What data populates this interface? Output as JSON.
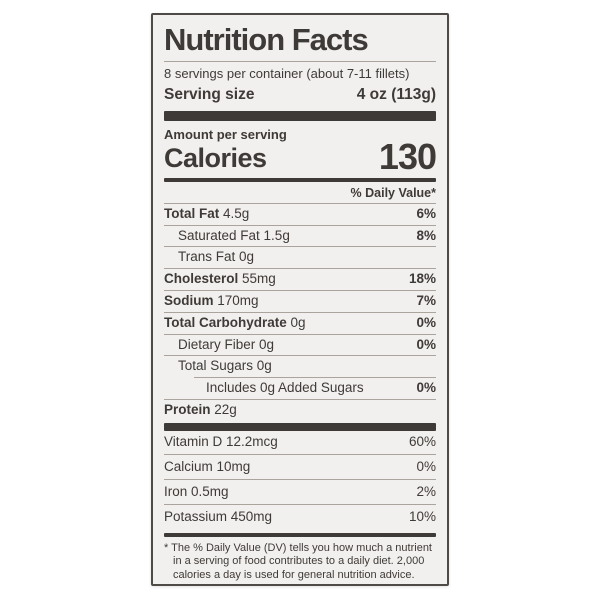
{
  "label": {
    "title": "Nutrition Facts",
    "servings_per_container": "8 servings per container (about 7-11 fillets)",
    "serving_size_label": "Serving size",
    "serving_size_value": "4 oz (113g)",
    "amount_per_serving": "Amount per serving",
    "calories_label": "Calories",
    "calories_value": "130",
    "daily_value_header": "% Daily Value*",
    "nutrient_rows": [
      {
        "name": "Total Fat",
        "rest": "4.5g",
        "dv": "6%",
        "indent": 0
      },
      {
        "name": "",
        "rest": "Saturated Fat 1.5g",
        "dv": "8%",
        "indent": 1
      },
      {
        "name": "",
        "rest": "Trans Fat 0g",
        "dv": "",
        "indent": 1
      },
      {
        "name": "Cholesterol",
        "rest": "55mg",
        "dv": "18%",
        "indent": 0
      },
      {
        "name": "Sodium",
        "rest": "170mg",
        "dv": "7%",
        "indent": 0
      },
      {
        "name": "Total Carbohydrate",
        "rest": "0g",
        "dv": "0%",
        "indent": 0
      },
      {
        "name": "",
        "rest": "Dietary Fiber 0g",
        "dv": "0%",
        "indent": 1
      },
      {
        "name": "",
        "rest": "Total Sugars 0g",
        "dv": "",
        "indent": 1
      },
      {
        "name": "",
        "rest": "Includes 0g Added Sugars",
        "dv": "0%",
        "indent": 2
      },
      {
        "name": "Protein",
        "rest": "22g",
        "dv": "",
        "indent": 0
      }
    ],
    "vitamin_rows": [
      {
        "name": "",
        "rest": "Vitamin D 12.2mcg",
        "dv": "60%",
        "indent": 0
      },
      {
        "name": "",
        "rest": "Calcium 10mg",
        "dv": "0%",
        "indent": 0
      },
      {
        "name": "",
        "rest": "Iron 0.5mg",
        "dv": "2%",
        "indent": 0
      },
      {
        "name": "",
        "rest": "Potassium 450mg",
        "dv": "10%",
        "indent": 0
      }
    ],
    "footnote": "* The % Daily Value (DV) tells you how much a nutrient in a serving of food contributes to a daily diet. 2,000 calories a day is used for general nutrition advice."
  },
  "colors": {
    "page_bg": "#ffffff",
    "label_bg": "#f2f0ee",
    "ink": "#3e3a37",
    "divider": "#aaa49d",
    "border": "#4e4a46"
  }
}
